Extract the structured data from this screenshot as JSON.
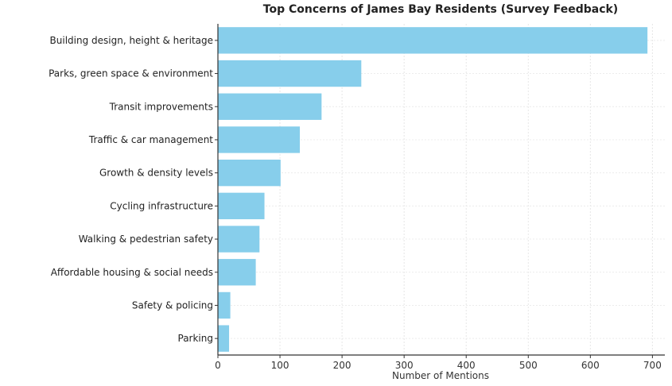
{
  "chart_data": {
    "type": "bar",
    "orientation": "horizontal",
    "title": "Top Concerns of James Bay Residents (Survey Feedback)",
    "xlabel": "Number of Mentions",
    "ylabel": "",
    "categories": [
      "Building design, height & heritage",
      "Parks, green space & environment",
      "Transit improvements",
      "Traffic & car management",
      "Growth & density levels",
      "Cycling infrastructure",
      "Walking & pedestrian safety",
      "Affordable housing & social needs",
      "Safety & policing",
      "Parking"
    ],
    "values": [
      692,
      231,
      167,
      132,
      101,
      75,
      67,
      61,
      20,
      18
    ],
    "xlim": [
      0,
      720
    ],
    "xticks": [
      0,
      100,
      200,
      300,
      400,
      500,
      600,
      700
    ],
    "grid": true,
    "bar_color": "#87ceeb"
  }
}
